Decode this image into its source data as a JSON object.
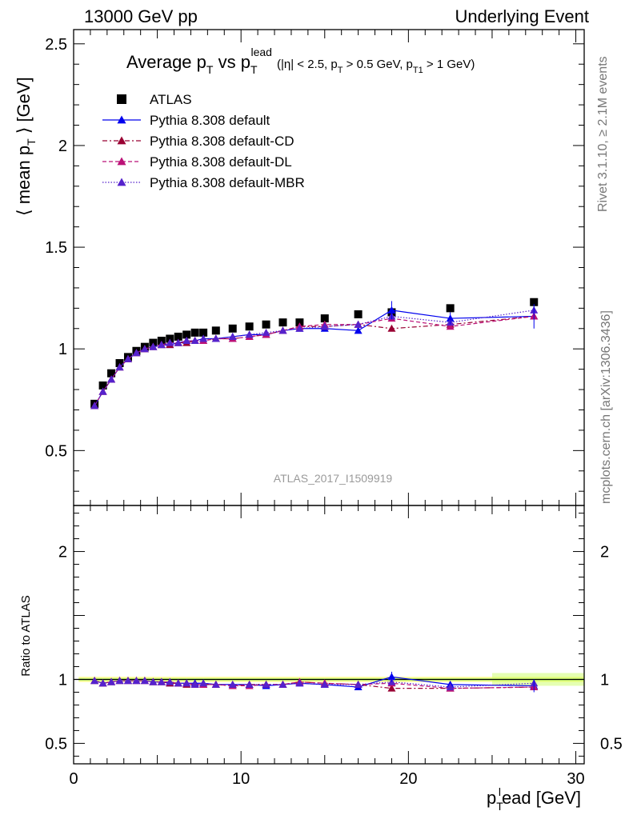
{
  "header": {
    "left": "13000 GeV pp",
    "right": "Underlying Event"
  },
  "side_labels": {
    "rivet": "Rivet 3.1.10, ≥ 2.1M events",
    "mcplots": "mcplots.cern.ch [arXiv:1306.3436]"
  },
  "chart_data": [
    {
      "type": "scatter",
      "panel": "main",
      "title": {
        "main": "Average p",
        "sub1": "T",
        "vs": " vs p",
        "sub2": "T",
        "sup2": "lead",
        "cuts": "(|η| < 2.5, p",
        "cuts_sub": "T",
        "cuts2": " > 0.5 GeV, p",
        "cuts_sub2": "T1",
        "cuts3": " > 1 GeV)"
      },
      "ylabel": "⟨ mean p",
      "ylabel_sub": "T",
      "ylabel_end": " ⟩ [GeV]",
      "watermark": "ATLAS_2017_I1509919",
      "xlim": [
        0,
        30.5
      ],
      "ylim": [
        0.23,
        2.57
      ],
      "yticks": [
        0.5,
        1,
        1.5,
        2,
        2.5
      ],
      "ytick_labels": [
        "0.5",
        "1",
        "1.5",
        "2",
        "2.5"
      ],
      "legend_position": "top-left",
      "legend": [
        "ATLAS",
        "Pythia 8.308 default",
        "Pythia 8.308 default-CD",
        "Pythia 8.308 default-DL",
        "Pythia 8.308 default-MBR"
      ],
      "x": [
        1.25,
        1.75,
        2.25,
        2.75,
        3.25,
        3.75,
        4.25,
        4.75,
        5.25,
        5.75,
        6.25,
        6.75,
        7.25,
        7.75,
        8.5,
        9.5,
        10.5,
        11.5,
        12.5,
        13.5,
        15.0,
        17.0,
        19.0,
        22.5,
        27.5
      ],
      "series": [
        {
          "name": "ATLAS",
          "color": "#000000",
          "marker": "square",
          "style": "none",
          "values": [
            0.73,
            0.82,
            0.88,
            0.93,
            0.96,
            0.99,
            1.01,
            1.03,
            1.04,
            1.05,
            1.06,
            1.07,
            1.08,
            1.08,
            1.09,
            1.1,
            1.11,
            1.12,
            1.13,
            1.13,
            1.15,
            1.17,
            1.18,
            1.2,
            1.23
          ]
        },
        {
          "name": "Pythia 8.308 default",
          "color": "#0000ee",
          "marker": "triangle",
          "style": "solid",
          "values": [
            0.72,
            0.79,
            0.85,
            0.91,
            0.95,
            0.98,
            1.0,
            1.01,
            1.02,
            1.02,
            1.03,
            1.04,
            1.04,
            1.05,
            1.05,
            1.06,
            1.07,
            1.07,
            1.09,
            1.1,
            1.1,
            1.09,
            1.19,
            1.15,
            1.16
          ]
        },
        {
          "name": "Pythia 8.308 default-CD",
          "color": "#990033",
          "marker": "triangle",
          "style": "dashdot",
          "values": [
            0.72,
            0.79,
            0.85,
            0.91,
            0.95,
            0.98,
            1.0,
            1.01,
            1.02,
            1.02,
            1.03,
            1.03,
            1.04,
            1.04,
            1.05,
            1.05,
            1.06,
            1.07,
            1.09,
            1.11,
            1.11,
            1.12,
            1.1,
            1.12,
            1.16
          ]
        },
        {
          "name": "Pythia 8.308 default-DL",
          "color": "#bb1177",
          "marker": "triangle",
          "style": "dashed",
          "values": [
            0.72,
            0.79,
            0.85,
            0.91,
            0.95,
            0.98,
            1.0,
            1.01,
            1.02,
            1.03,
            1.03,
            1.04,
            1.04,
            1.04,
            1.05,
            1.05,
            1.06,
            1.07,
            1.09,
            1.11,
            1.12,
            1.12,
            1.15,
            1.11,
            1.16
          ]
        },
        {
          "name": "Pythia 8.308 default-MBR",
          "color": "#5522cc",
          "marker": "triangle",
          "style": "dotted",
          "values": [
            0.72,
            0.79,
            0.85,
            0.91,
            0.95,
            0.98,
            1.0,
            1.01,
            1.02,
            1.03,
            1.03,
            1.04,
            1.04,
            1.05,
            1.05,
            1.06,
            1.07,
            1.08,
            1.09,
            1.1,
            1.11,
            1.12,
            1.16,
            1.13,
            1.19
          ]
        }
      ]
    },
    {
      "type": "scatter",
      "panel": "ratio",
      "ylabel": "Ratio to ATLAS",
      "xlabel": "p",
      "xlabel_sub": "T",
      "xlabel_sup": "l",
      "xlabel_end": "ead [GeV]",
      "xlim": [
        0,
        30.5
      ],
      "ylim": [
        0.34,
        2.36
      ],
      "xticks": [
        0,
        10,
        20,
        30
      ],
      "xtick_labels": [
        "0",
        "10",
        "20",
        "30"
      ],
      "yticks": [
        0.5,
        1,
        2
      ],
      "ytick_labels": [
        "0.5",
        "1",
        "2"
      ],
      "right_ytick_labels": [
        "0.5",
        "1",
        "2"
      ],
      "x": [
        1.25,
        1.75,
        2.25,
        2.75,
        3.25,
        3.75,
        4.25,
        4.75,
        5.25,
        5.75,
        6.25,
        6.75,
        7.25,
        7.75,
        8.5,
        9.5,
        10.5,
        11.5,
        12.5,
        13.5,
        15.0,
        17.0,
        19.0,
        22.5,
        27.5
      ],
      "series": [
        {
          "name": "Pythia 8.308 default",
          "color": "#0000ee",
          "style": "solid",
          "values": [
            0.99,
            0.97,
            0.98,
            0.99,
            0.99,
            0.99,
            0.99,
            0.98,
            0.98,
            0.97,
            0.97,
            0.97,
            0.97,
            0.97,
            0.96,
            0.96,
            0.96,
            0.95,
            0.96,
            0.97,
            0.96,
            0.94,
            1.02,
            0.96,
            0.95
          ]
        },
        {
          "name": "Pythia 8.308 default-CD",
          "color": "#990033",
          "style": "dashdot",
          "values": [
            0.99,
            0.97,
            0.98,
            0.99,
            0.99,
            0.99,
            0.99,
            0.98,
            0.98,
            0.97,
            0.97,
            0.96,
            0.96,
            0.96,
            0.96,
            0.95,
            0.96,
            0.96,
            0.96,
            0.98,
            0.97,
            0.96,
            0.93,
            0.93,
            0.94
          ]
        },
        {
          "name": "Pythia 8.308 default-DL",
          "color": "#bb1177",
          "style": "dashed",
          "values": [
            0.99,
            0.97,
            0.98,
            0.99,
            0.99,
            0.99,
            0.99,
            0.98,
            0.98,
            0.98,
            0.97,
            0.97,
            0.96,
            0.96,
            0.96,
            0.95,
            0.95,
            0.96,
            0.96,
            0.98,
            0.97,
            0.96,
            0.97,
            0.93,
            0.94
          ]
        },
        {
          "name": "Pythia 8.308 default-MBR",
          "color": "#5522cc",
          "style": "dotted",
          "values": [
            0.99,
            0.97,
            0.98,
            0.99,
            0.99,
            0.99,
            0.99,
            0.98,
            0.98,
            0.98,
            0.97,
            0.97,
            0.96,
            0.97,
            0.96,
            0.96,
            0.96,
            0.96,
            0.96,
            0.97,
            0.96,
            0.96,
            0.98,
            0.94,
            0.97
          ]
        }
      ]
    }
  ]
}
